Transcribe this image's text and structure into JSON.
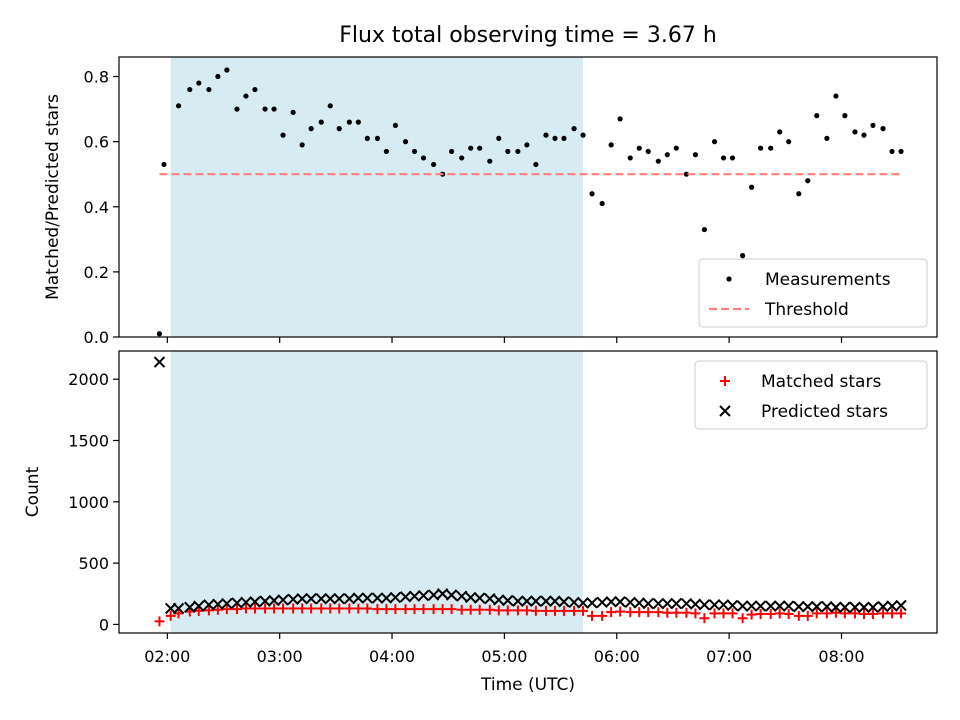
{
  "chart_data": {
    "title": "Flux total observing time = 3.67 h",
    "xlabel": "Time (UTC)",
    "x_ticks": [
      "02:00",
      "03:00",
      "04:00",
      "05:00",
      "06:00",
      "07:00",
      "08:00"
    ],
    "x_range_hours": [
      1.57,
      8.85
    ],
    "shaded_region": [
      2.03,
      5.7
    ],
    "shade_color": "#add8e6",
    "panels": [
      {
        "type": "scatter",
        "ylabel": "Matched/Predicted stars",
        "ylim": [
          0.0,
          0.86
        ],
        "y_ticks": [
          "0.0",
          "0.2",
          "0.4",
          "0.6",
          "0.8"
        ],
        "y_tick_values": [
          0.0,
          0.2,
          0.4,
          0.6,
          0.8
        ],
        "legend_position": "bottom-right",
        "series": [
          {
            "name": "Measurements",
            "marker": "dot",
            "color": "#000000",
            "x": [
              1.93,
              1.97,
              2.1,
              2.2,
              2.28,
              2.37,
              2.45,
              2.53,
              2.62,
              2.7,
              2.78,
              2.87,
              2.95,
              3.03,
              3.12,
              3.2,
              3.28,
              3.37,
              3.45,
              3.53,
              3.62,
              3.7,
              3.78,
              3.87,
              3.95,
              4.03,
              4.12,
              4.2,
              4.28,
              4.37,
              4.45,
              4.53,
              4.62,
              4.7,
              4.78,
              4.87,
              4.95,
              5.03,
              5.12,
              5.2,
              5.28,
              5.37,
              5.45,
              5.53,
              5.62,
              5.7,
              5.78,
              5.87,
              5.95,
              6.03,
              6.12,
              6.2,
              6.28,
              6.37,
              6.45,
              6.53,
              6.62,
              6.7,
              6.78,
              6.87,
              6.95,
              7.03,
              7.12,
              7.2,
              7.28,
              7.37,
              7.45,
              7.53,
              7.62,
              7.7,
              7.78,
              7.87,
              7.95,
              8.03,
              8.12,
              8.2,
              8.28,
              8.37,
              8.45,
              8.53
            ],
            "y": [
              0.01,
              0.53,
              0.71,
              0.76,
              0.78,
              0.76,
              0.8,
              0.82,
              0.7,
              0.74,
              0.76,
              0.7,
              0.7,
              0.62,
              0.69,
              0.59,
              0.64,
              0.66,
              0.71,
              0.64,
              0.66,
              0.66,
              0.61,
              0.61,
              0.57,
              0.65,
              0.6,
              0.57,
              0.55,
              0.53,
              0.5,
              0.57,
              0.55,
              0.58,
              0.58,
              0.54,
              0.61,
              0.57,
              0.57,
              0.59,
              0.53,
              0.62,
              0.61,
              0.61,
              0.64,
              0.62,
              0.44,
              0.41,
              0.59,
              0.67,
              0.55,
              0.58,
              0.57,
              0.54,
              0.56,
              0.58,
              0.5,
              0.56,
              0.33,
              0.6,
              0.55,
              0.55,
              0.25,
              0.46,
              0.58,
              0.58,
              0.63,
              0.6,
              0.44,
              0.48,
              0.68,
              0.61,
              0.74,
              0.68,
              0.63,
              0.62,
              0.65,
              0.64,
              0.57,
              0.57
            ]
          },
          {
            "name": "Threshold",
            "marker": "dashed-line",
            "color": "#ff7f7f",
            "x": [
              1.93,
              8.53
            ],
            "y": [
              0.5,
              0.5
            ]
          }
        ]
      },
      {
        "type": "scatter",
        "ylabel": "Count",
        "ylim": [
          -70,
          2230
        ],
        "y_ticks": [
          "0",
          "500",
          "1000",
          "1500",
          "2000"
        ],
        "y_tick_values": [
          0,
          500,
          1000,
          1500,
          2000
        ],
        "legend_position": "top-right",
        "series": [
          {
            "name": "Matched stars",
            "marker": "plus",
            "color": "#ff0000",
            "x": [
              1.93,
              2.03,
              2.1,
              2.2,
              2.28,
              2.37,
              2.45,
              2.53,
              2.62,
              2.7,
              2.78,
              2.87,
              2.95,
              3.03,
              3.12,
              3.2,
              3.28,
              3.37,
              3.45,
              3.53,
              3.62,
              3.7,
              3.78,
              3.87,
              3.95,
              4.03,
              4.12,
              4.2,
              4.28,
              4.37,
              4.45,
              4.53,
              4.62,
              4.7,
              4.78,
              4.87,
              4.95,
              5.03,
              5.12,
              5.2,
              5.28,
              5.37,
              5.45,
              5.53,
              5.62,
              5.7,
              5.78,
              5.87,
              5.95,
              6.03,
              6.12,
              6.2,
              6.28,
              6.37,
              6.45,
              6.53,
              6.62,
              6.7,
              6.78,
              6.87,
              6.95,
              7.03,
              7.12,
              7.2,
              7.28,
              7.37,
              7.45,
              7.53,
              7.62,
              7.7,
              7.78,
              7.87,
              7.95,
              8.03,
              8.12,
              8.2,
              8.28,
              8.37,
              8.45,
              8.53
            ],
            "y": [
              25,
              70,
              90,
              105,
              110,
              115,
              120,
              125,
              125,
              130,
              130,
              130,
              130,
              130,
              130,
              130,
              130,
              130,
              130,
              130,
              130,
              130,
              130,
              125,
              125,
              125,
              125,
              125,
              125,
              125,
              125,
              125,
              120,
              120,
              120,
              120,
              115,
              115,
              115,
              115,
              110,
              110,
              110,
              110,
              110,
              110,
              70,
              70,
              100,
              105,
              100,
              100,
              100,
              100,
              95,
              95,
              95,
              90,
              50,
              90,
              90,
              90,
              50,
              80,
              85,
              85,
              90,
              85,
              70,
              70,
              90,
              90,
              95,
              90,
              90,
              85,
              85,
              90,
              90,
              90
            ]
          },
          {
            "name": "Predicted stars",
            "marker": "x",
            "color": "#000000",
            "x": [
              1.93,
              2.03,
              2.1,
              2.2,
              2.28,
              2.37,
              2.45,
              2.53,
              2.62,
              2.7,
              2.78,
              2.87,
              2.95,
              3.03,
              3.12,
              3.2,
              3.28,
              3.37,
              3.45,
              3.53,
              3.62,
              3.7,
              3.78,
              3.87,
              3.95,
              4.03,
              4.12,
              4.2,
              4.28,
              4.37,
              4.45,
              4.53,
              4.62,
              4.7,
              4.78,
              4.87,
              4.95,
              5.03,
              5.12,
              5.2,
              5.28,
              5.37,
              5.45,
              5.53,
              5.62,
              5.7,
              5.78,
              5.87,
              5.95,
              6.03,
              6.12,
              6.2,
              6.28,
              6.37,
              6.45,
              6.53,
              6.62,
              6.7,
              6.78,
              6.87,
              6.95,
              7.03,
              7.12,
              7.2,
              7.28,
              7.37,
              7.45,
              7.53,
              7.62,
              7.7,
              7.78,
              7.87,
              7.95,
              8.03,
              8.12,
              8.2,
              8.28,
              8.37,
              8.45,
              8.53
            ],
            "y": [
              2140,
              130,
              130,
              140,
              150,
              160,
              165,
              170,
              175,
              180,
              185,
              190,
              195,
              200,
              205,
              210,
              210,
              210,
              210,
              210,
              210,
              215,
              215,
              215,
              215,
              220,
              225,
              230,
              235,
              240,
              250,
              240,
              230,
              220,
              215,
              210,
              200,
              195,
              190,
              190,
              190,
              190,
              190,
              185,
              180,
              175,
              175,
              180,
              185,
              185,
              180,
              175,
              170,
              170,
              170,
              170,
              170,
              165,
              160,
              160,
              160,
              155,
              150,
              150,
              150,
              150,
              150,
              150,
              145,
              145,
              145,
              145,
              140,
              140,
              140,
              140,
              140,
              145,
              150,
              155
            ]
          }
        ]
      }
    ]
  }
}
